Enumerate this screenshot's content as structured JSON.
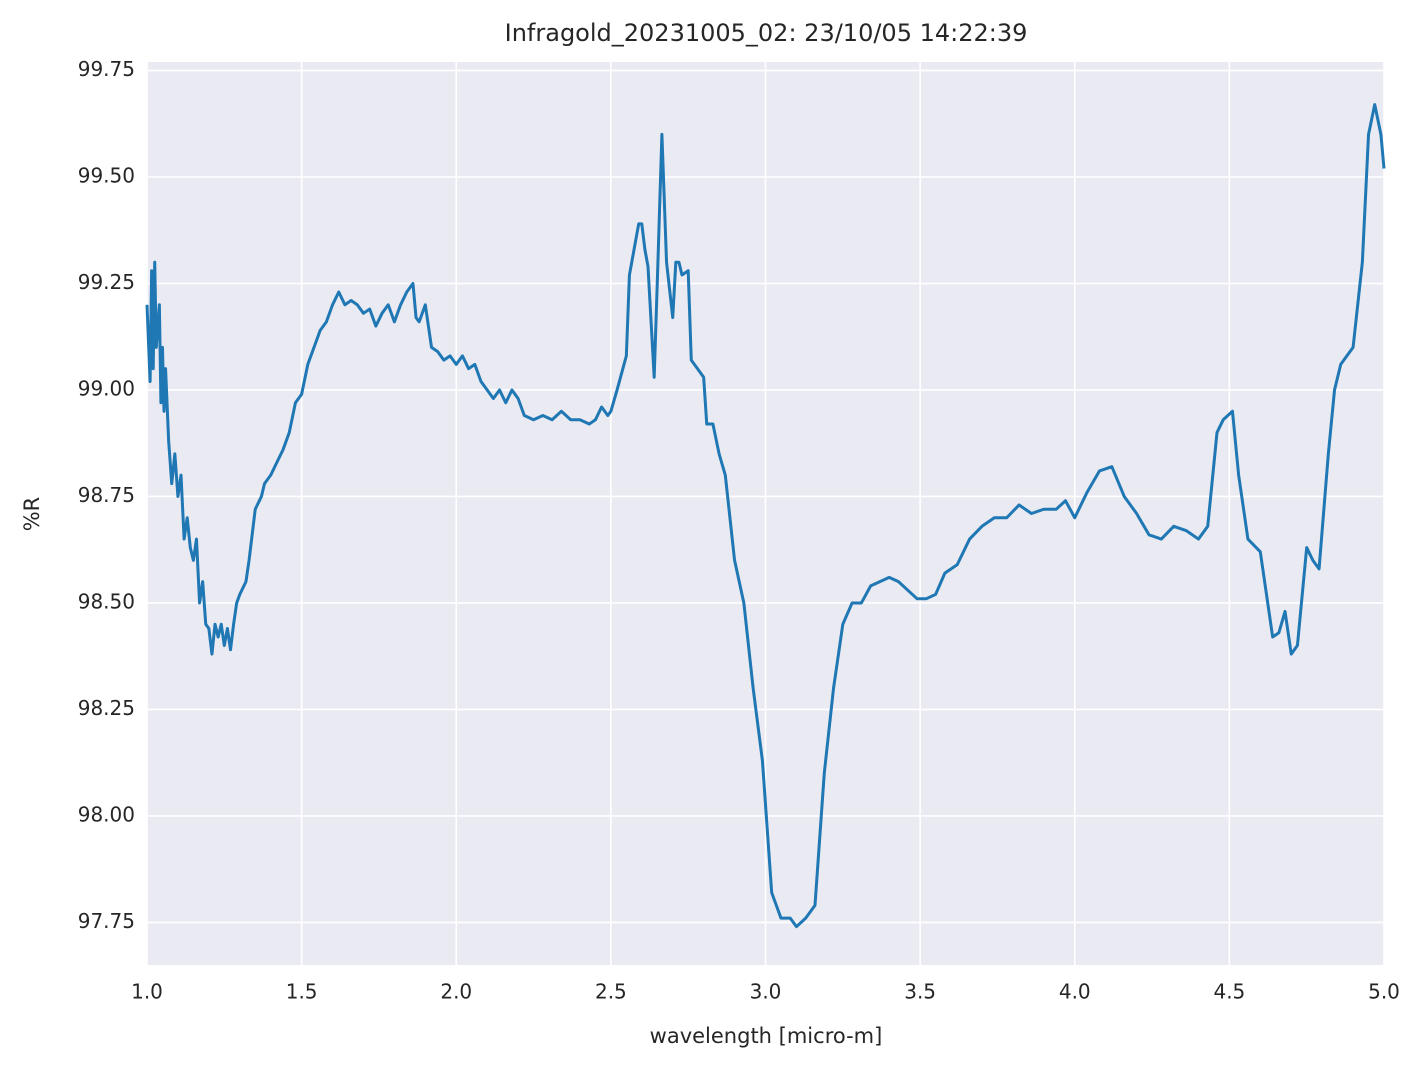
{
  "chart_data": {
    "type": "line",
    "title": "Infragold_20231005_02:  23/10/05 14:22:39",
    "xlabel": "wavelength [micro-m]",
    "ylabel": "%R",
    "color": "#1f77b4",
    "grid": true,
    "xlim": [
      1.0,
      5.0
    ],
    "ylim": [
      97.65,
      99.77
    ],
    "xticks": [
      {
        "value": 1.0,
        "label": "1.0"
      },
      1.5,
      {
        "value": 2.0,
        "label": "2.0"
      },
      2.5,
      {
        "value": 3.0,
        "label": "3.0"
      },
      3.5,
      {
        "value": 4.0,
        "label": "4.0"
      },
      4.5,
      {
        "value": 5.0,
        "label": "5.0"
      }
    ],
    "yticks": [
      97.75,
      {
        "value": 98.0,
        "label": "98.00"
      },
      98.25,
      {
        "value": 98.5,
        "label": "98.50"
      },
      98.75,
      {
        "value": 99.0,
        "label": "99.00"
      },
      99.25,
      {
        "value": 99.5,
        "label": "99.50"
      },
      99.75
    ],
    "x": [
      1.0,
      1.01,
      1.015,
      1.02,
      1.025,
      1.03,
      1.04,
      1.045,
      1.05,
      1.055,
      1.06,
      1.07,
      1.08,
      1.09,
      1.1,
      1.11,
      1.12,
      1.13,
      1.14,
      1.15,
      1.16,
      1.17,
      1.18,
      1.19,
      1.2,
      1.21,
      1.22,
      1.23,
      1.24,
      1.25,
      1.26,
      1.27,
      1.28,
      1.29,
      1.3,
      1.32,
      1.33,
      1.34,
      1.35,
      1.37,
      1.38,
      1.4,
      1.42,
      1.44,
      1.46,
      1.48,
      1.5,
      1.52,
      1.54,
      1.56,
      1.58,
      1.6,
      1.62,
      1.64,
      1.66,
      1.68,
      1.7,
      1.72,
      1.74,
      1.76,
      1.78,
      1.8,
      1.82,
      1.84,
      1.86,
      1.87,
      1.88,
      1.9,
      1.92,
      1.94,
      1.96,
      1.98,
      2.0,
      2.02,
      2.04,
      2.06,
      2.08,
      2.1,
      2.12,
      2.14,
      2.16,
      2.18,
      2.2,
      2.22,
      2.25,
      2.28,
      2.31,
      2.34,
      2.37,
      2.4,
      2.43,
      2.45,
      2.47,
      2.49,
      2.5,
      2.52,
      2.55,
      2.56,
      2.58,
      2.59,
      2.6,
      2.61,
      2.62,
      2.64,
      2.65,
      2.665,
      2.68,
      2.7,
      2.71,
      2.72,
      2.73,
      2.75,
      2.76,
      2.78,
      2.8,
      2.81,
      2.83,
      2.85,
      2.87,
      2.9,
      2.93,
      2.96,
      2.99,
      3.02,
      3.05,
      3.08,
      3.1,
      3.13,
      3.16,
      3.19,
      3.22,
      3.25,
      3.28,
      3.31,
      3.34,
      3.37,
      3.4,
      3.43,
      3.46,
      3.49,
      3.52,
      3.55,
      3.58,
      3.62,
      3.66,
      3.7,
      3.74,
      3.78,
      3.82,
      3.86,
      3.9,
      3.94,
      3.97,
      4.0,
      4.04,
      4.08,
      4.12,
      4.16,
      4.2,
      4.24,
      4.28,
      4.32,
      4.36,
      4.4,
      4.43,
      4.46,
      4.48,
      4.51,
      4.53,
      4.56,
      4.6,
      4.64,
      4.66,
      4.68,
      4.7,
      4.72,
      4.75,
      4.77,
      4.79,
      4.82,
      4.84,
      4.86,
      4.9,
      4.93,
      4.95,
      4.97,
      4.99,
      5.0
    ],
    "values": [
      99.2,
      99.02,
      99.28,
      99.05,
      99.3,
      99.1,
      99.2,
      98.97,
      99.1,
      98.95,
      99.05,
      98.88,
      98.78,
      98.85,
      98.75,
      98.8,
      98.65,
      98.7,
      98.63,
      98.6,
      98.65,
      98.5,
      98.55,
      98.45,
      98.44,
      98.38,
      98.45,
      98.42,
      98.45,
      98.4,
      98.44,
      98.39,
      98.45,
      98.5,
      98.52,
      98.55,
      98.6,
      98.66,
      98.72,
      98.75,
      98.78,
      98.8,
      98.83,
      98.86,
      98.9,
      98.97,
      98.99,
      99.06,
      99.1,
      99.14,
      99.16,
      99.2,
      99.23,
      99.2,
      99.21,
      99.2,
      99.18,
      99.19,
      99.15,
      99.18,
      99.2,
      99.16,
      99.2,
      99.23,
      99.25,
      99.17,
      99.16,
      99.2,
      99.1,
      99.09,
      99.07,
      99.08,
      99.06,
      99.08,
      99.05,
      99.06,
      99.02,
      99.0,
      98.98,
      99.0,
      98.97,
      99.0,
      98.98,
      98.94,
      98.93,
      98.94,
      98.93,
      98.95,
      98.93,
      98.93,
      98.92,
      98.93,
      98.96,
      98.94,
      98.95,
      99.0,
      99.08,
      99.27,
      99.35,
      99.39,
      99.39,
      99.33,
      99.29,
      99.03,
      99.25,
      99.6,
      99.3,
      99.17,
      99.3,
      99.3,
      99.27,
      99.28,
      99.07,
      99.05,
      99.03,
      98.92,
      98.92,
      98.85,
      98.8,
      98.6,
      98.5,
      98.3,
      98.13,
      97.82,
      97.76,
      97.76,
      97.74,
      97.76,
      97.79,
      98.1,
      98.3,
      98.45,
      98.5,
      98.5,
      98.54,
      98.55,
      98.56,
      98.55,
      98.53,
      98.51,
      98.51,
      98.52,
      98.57,
      98.59,
      98.65,
      98.68,
      98.7,
      98.7,
      98.73,
      98.71,
      98.72,
      98.72,
      98.74,
      98.7,
      98.76,
      98.81,
      98.82,
      98.75,
      98.71,
      98.66,
      98.65,
      98.68,
      98.67,
      98.65,
      98.68,
      98.9,
      98.93,
      98.95,
      98.8,
      98.65,
      98.62,
      98.42,
      98.43,
      98.48,
      98.38,
      98.4,
      98.63,
      98.6,
      98.58,
      98.85,
      99.0,
      99.06,
      99.1,
      99.3,
      99.6,
      99.67,
      99.6,
      99.52
    ]
  }
}
